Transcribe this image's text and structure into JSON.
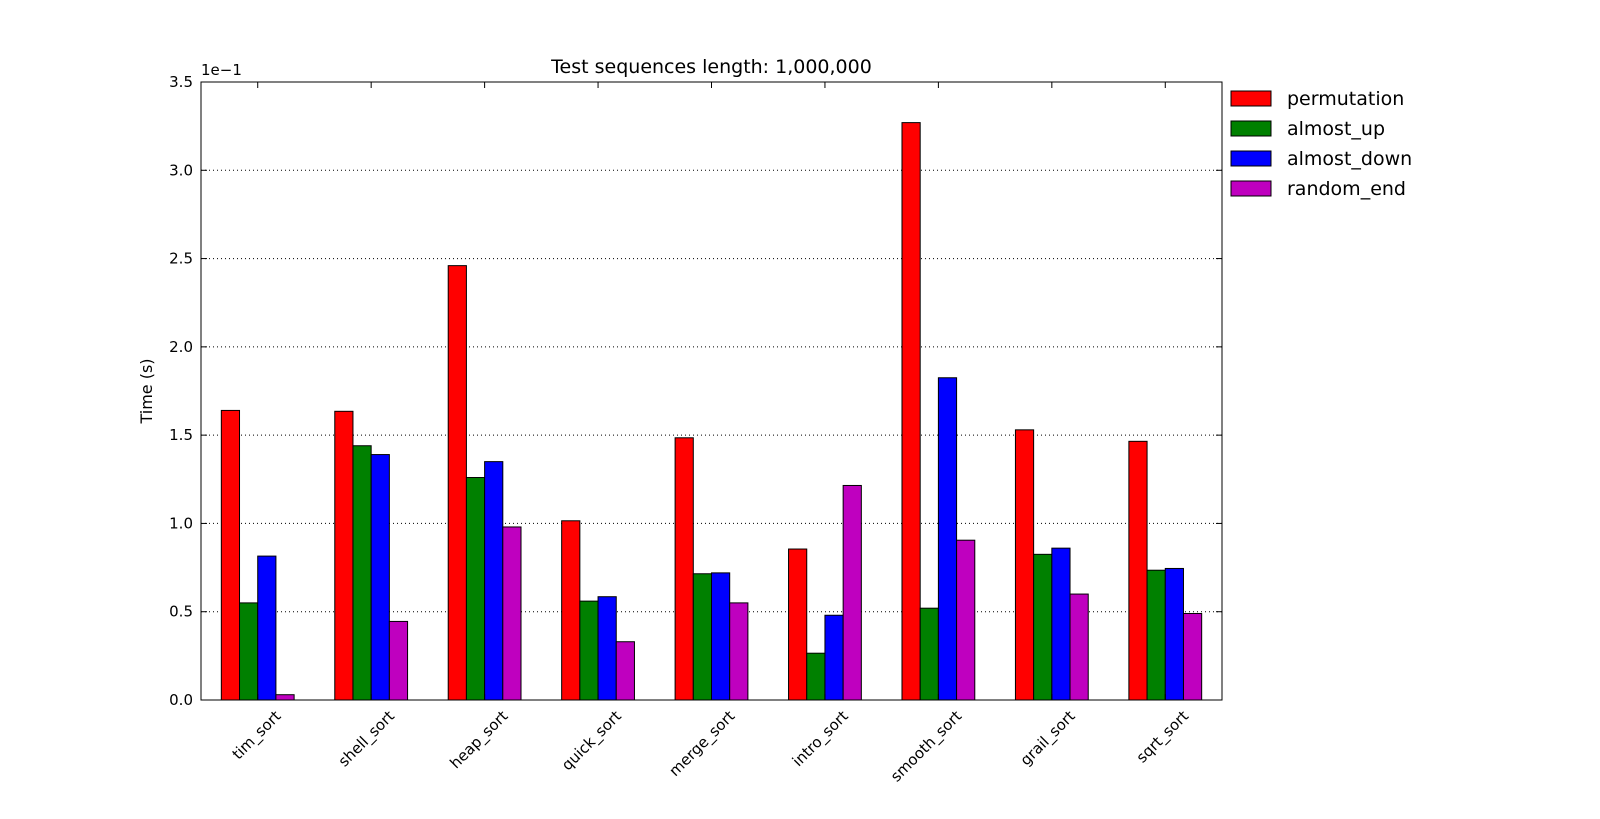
{
  "chart_data": {
    "type": "bar",
    "title": "Test sequences length: 1,000,000",
    "xlabel": "",
    "ylabel": "Time (s)",
    "y_offset_label": "1e−1",
    "ylim": [
      0,
      3.5
    ],
    "yticks": [
      0.0,
      0.5,
      1.0,
      1.5,
      2.0,
      2.5,
      3.0,
      3.5
    ],
    "ytick_labels": [
      "0.0",
      "0.5",
      "1.0",
      "1.5",
      "2.0",
      "2.5",
      "3.0",
      "3.5"
    ],
    "grid": "horizontal dotted",
    "legend_position": "outside-top-right",
    "categories": [
      "tim_sort",
      "shell_sort",
      "heap_sort",
      "quick_sort",
      "merge_sort",
      "intro_sort",
      "smooth_sort",
      "grail_sort",
      "sqrt_sort"
    ],
    "series": [
      {
        "name": "permutation",
        "color": "#ff0000",
        "values": [
          1.64,
          1.635,
          2.46,
          1.015,
          1.485,
          0.855,
          3.27,
          1.53,
          1.465
        ]
      },
      {
        "name": "almost_up",
        "color": "#008000",
        "values": [
          0.55,
          1.44,
          1.26,
          0.56,
          0.715,
          0.265,
          0.52,
          0.825,
          0.735
        ]
      },
      {
        "name": "almost_down",
        "color": "#0000ff",
        "values": [
          0.815,
          1.39,
          1.35,
          0.585,
          0.72,
          0.48,
          1.825,
          0.86,
          0.745
        ]
      },
      {
        "name": "random_end",
        "color": "#bf00bf",
        "values": [
          0.03,
          0.445,
          0.98,
          0.33,
          0.55,
          1.215,
          0.905,
          0.6,
          0.49
        ]
      }
    ]
  }
}
